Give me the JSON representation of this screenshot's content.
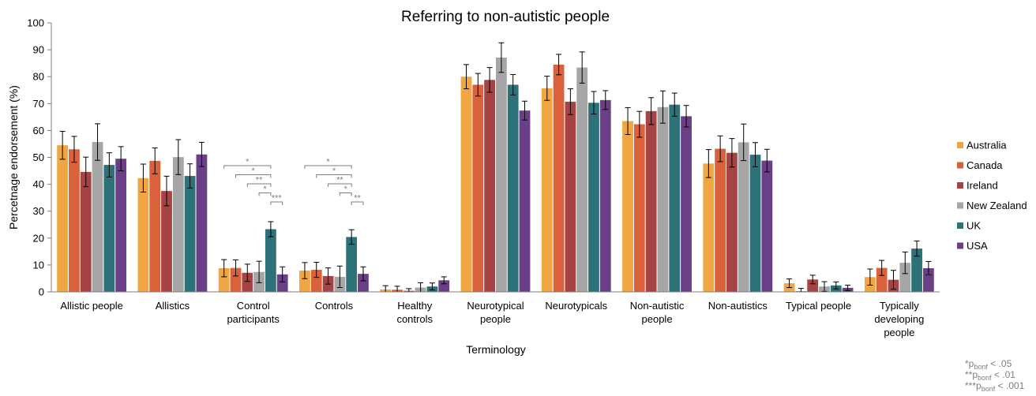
{
  "chart_data": {
    "type": "bar",
    "title": "Referring to non-autistic people",
    "xlabel": "Terminology",
    "ylabel": "Percetnage endorsement (%)",
    "ylim": [
      0,
      100
    ],
    "yticks": [
      0,
      10,
      20,
      30,
      40,
      50,
      60,
      70,
      80,
      90,
      100
    ],
    "grid": false,
    "legend_position": "right",
    "categories": [
      [
        "Allistic people"
      ],
      [
        "Allistics"
      ],
      [
        "Control",
        "participants"
      ],
      [
        "Controls"
      ],
      [
        "Healthy",
        "controls"
      ],
      [
        "Neurotypical",
        "people"
      ],
      [
        "Neurotypicals"
      ],
      [
        "Non-autistic",
        "people"
      ],
      [
        "Non-autistics"
      ],
      [
        "Typical people"
      ],
      [
        "Typically",
        "developing",
        "people"
      ]
    ],
    "series": [
      {
        "name": "Australia",
        "color": "#F0A643",
        "values": [
          54.5,
          42.3,
          8.8,
          7.9,
          0.9,
          80.0,
          75.7,
          63.5,
          47.7,
          3.2,
          5.5
        ],
        "errors": [
          5.2,
          5.2,
          3.2,
          3.0,
          1.4,
          4.5,
          4.5,
          5.0,
          5.2,
          1.6,
          3.0
        ]
      },
      {
        "name": "Canada",
        "color": "#D9623D",
        "values": [
          53.0,
          48.7,
          8.9,
          8.2,
          0.8,
          77.0,
          84.5,
          62.3,
          53.2,
          0.3,
          8.9
        ],
        "errors": [
          4.8,
          4.8,
          3.0,
          2.8,
          1.3,
          4.2,
          3.8,
          4.8,
          4.8,
          1.0,
          2.8
        ]
      },
      {
        "name": "Ireland",
        "color": "#A64344",
        "values": [
          44.6,
          37.5,
          7.1,
          5.9,
          0.4,
          78.8,
          70.7,
          67.2,
          51.7,
          4.6,
          4.5
        ],
        "errors": [
          5.5,
          5.5,
          3.2,
          3.0,
          0.8,
          4.6,
          4.8,
          5.0,
          5.3,
          1.6,
          3.5
        ]
      },
      {
        "name": "New Zealand",
        "color": "#A6A6A6",
        "values": [
          55.7,
          50.1,
          7.4,
          5.6,
          1.6,
          87.1,
          83.4,
          68.7,
          55.6,
          2.0,
          10.8
        ],
        "errors": [
          6.8,
          6.5,
          4.0,
          4.0,
          1.8,
          5.5,
          5.8,
          6.0,
          6.8,
          1.8,
          4.0
        ]
      },
      {
        "name": "UK",
        "color": "#2E7279",
        "values": [
          47.2,
          43.1,
          23.3,
          20.4,
          2.0,
          77.0,
          70.3,
          69.6,
          51.0,
          2.4,
          16.1
        ],
        "errors": [
          4.5,
          4.5,
          2.8,
          2.7,
          1.3,
          3.8,
          4.2,
          4.3,
          4.5,
          1.3,
          2.8
        ]
      },
      {
        "name": "USA",
        "color": "#6B3F86",
        "values": [
          49.5,
          51.1,
          6.5,
          6.7,
          4.3,
          67.4,
          71.3,
          65.3,
          48.8,
          1.5,
          8.8
        ],
        "errors": [
          4.5,
          4.5,
          2.8,
          2.6,
          1.3,
          3.5,
          3.5,
          4.0,
          4.2,
          1.0,
          2.5
        ]
      }
    ],
    "significance": [
      {
        "category": 2,
        "pairs": [
          {
            "from": 0,
            "to": 4,
            "label": "*"
          },
          {
            "from": 1,
            "to": 4,
            "label": "*"
          },
          {
            "from": 2,
            "to": 4,
            "label": "**"
          },
          {
            "from": 3,
            "to": 4,
            "label": "*"
          },
          {
            "from": 4,
            "to": 5,
            "label": "***"
          }
        ]
      },
      {
        "category": 3,
        "pairs": [
          {
            "from": 0,
            "to": 4,
            "label": "*"
          },
          {
            "from": 1,
            "to": 4,
            "label": "*"
          },
          {
            "from": 2,
            "to": 4,
            "label": "**"
          },
          {
            "from": 3,
            "to": 4,
            "label": "*"
          },
          {
            "from": 4,
            "to": 5,
            "label": "**"
          }
        ]
      }
    ]
  },
  "footnote": [
    {
      "stars": "*",
      "p": "p",
      "sub": "bonf",
      "rest": " < .05"
    },
    {
      "stars": "**",
      "p": "p",
      "sub": "bonf",
      "rest": " < .01"
    },
    {
      "stars": "***",
      "p": "p",
      "sub": "bonf",
      "rest": " < .001"
    }
  ]
}
